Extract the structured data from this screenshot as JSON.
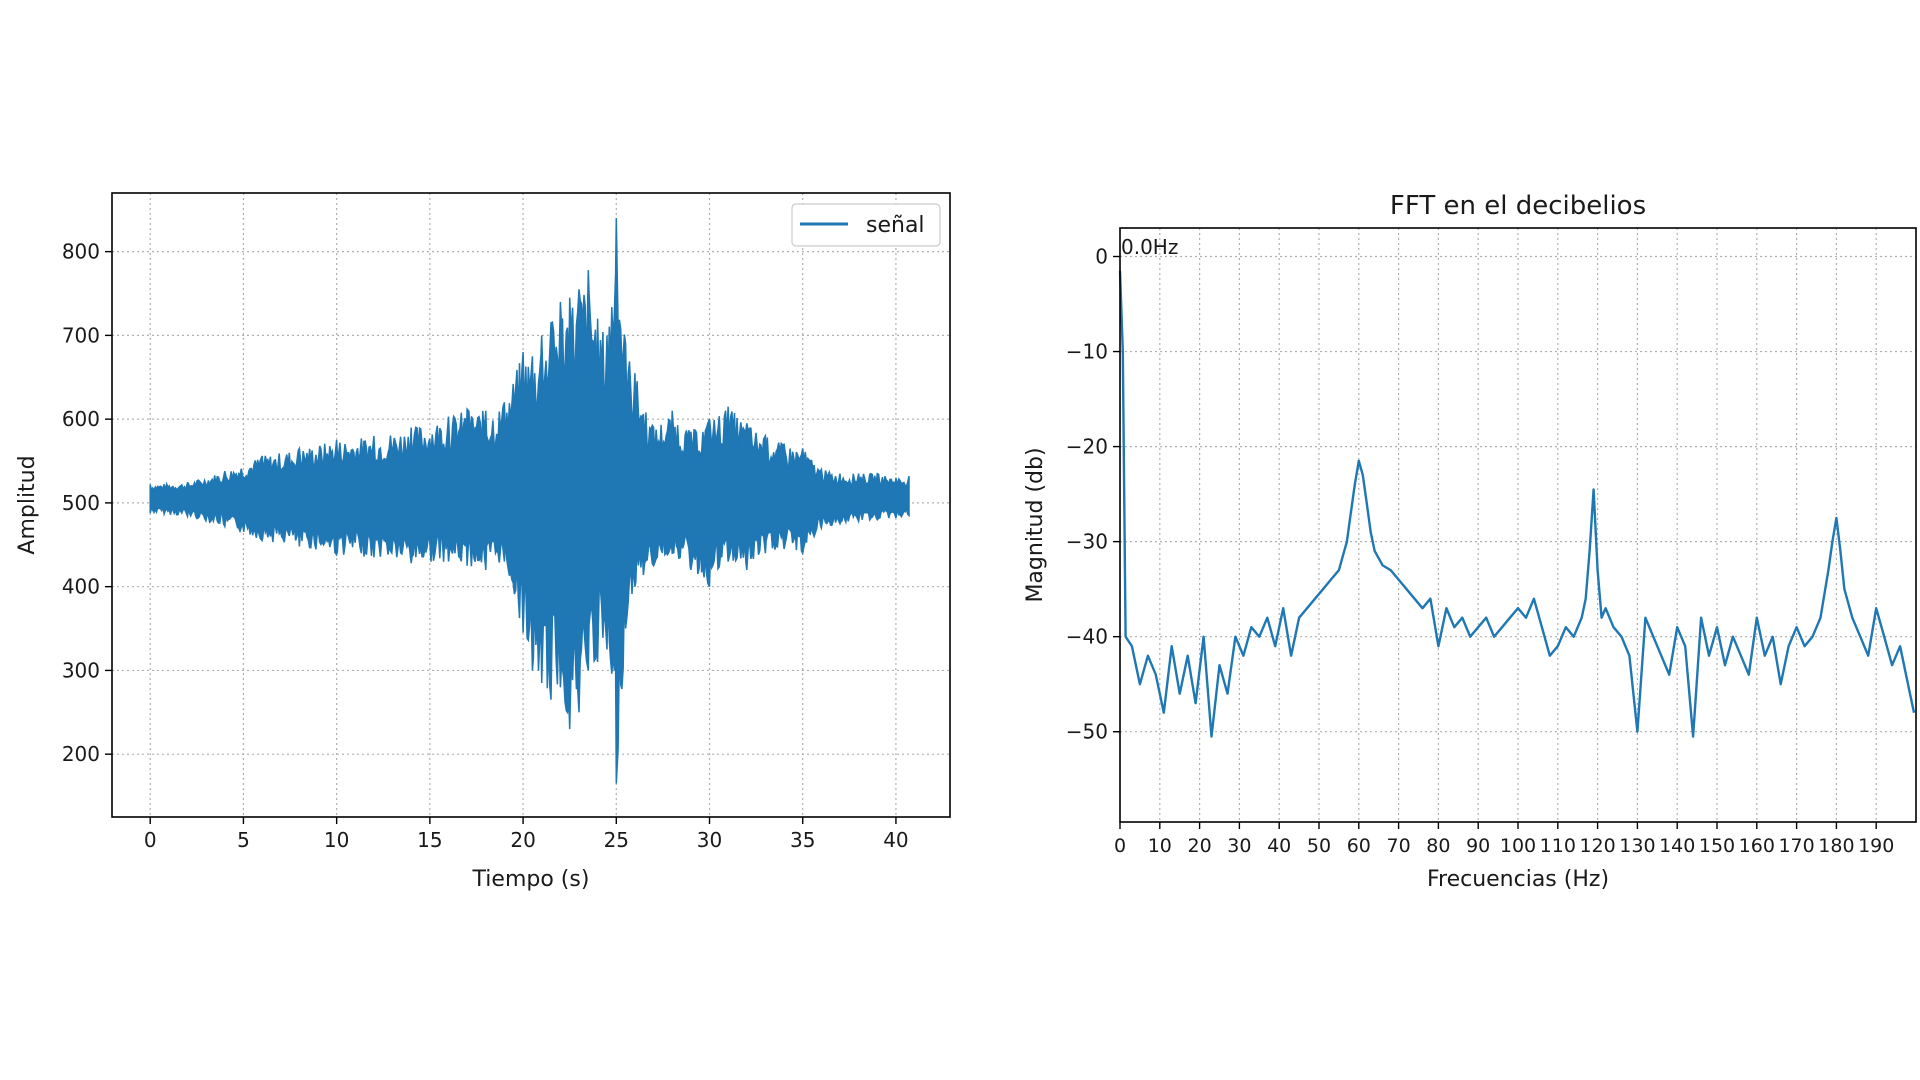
{
  "chart_data": [
    {
      "type": "line",
      "title": "",
      "xlabel": "Tiempo (s)",
      "ylabel": "Amplitud",
      "xlim": [
        -2.05,
        42.9
      ],
      "ylim": [
        125,
        870
      ],
      "xticks": [
        0,
        5,
        10,
        15,
        20,
        25,
        30,
        35,
        40
      ],
      "yticks": [
        200,
        300,
        400,
        500,
        600,
        700,
        800
      ],
      "grid": true,
      "legend": {
        "position": "upper-right",
        "entries": [
          "señal"
        ]
      },
      "color": "#1f77b4",
      "series": [
        {
          "name": "señal",
          "x": [
            0,
            2,
            4,
            6,
            8,
            10,
            12,
            14,
            16,
            17,
            18,
            19,
            20,
            20.5,
            21,
            21.5,
            22,
            22.5,
            23,
            23.5,
            24,
            24.5,
            25,
            25.5,
            26,
            27,
            28,
            29,
            30,
            31,
            32,
            33,
            34,
            35,
            36,
            37,
            38,
            39,
            40,
            40.7
          ],
          "upper": [
            522,
            524,
            538,
            556,
            565,
            575,
            580,
            590,
            603,
            612,
            610,
            620,
            680,
            675,
            700,
            715,
            740,
            745,
            755,
            778,
            720,
            700,
            840,
            690,
            655,
            590,
            610,
            585,
            600,
            615,
            595,
            580,
            570,
            565,
            540,
            535,
            535,
            535,
            530,
            532
          ],
          "lower": [
            488,
            484,
            472,
            455,
            448,
            438,
            435,
            428,
            430,
            425,
            420,
            430,
            345,
            300,
            285,
            265,
            280,
            230,
            250,
            300,
            310,
            325,
            165,
            350,
            400,
            425,
            440,
            420,
            400,
            430,
            420,
            440,
            445,
            440,
            470,
            475,
            478,
            480,
            482,
            485
          ]
        }
      ]
    },
    {
      "type": "line",
      "title": "FFT en el decibelios",
      "xlabel": "Frecuencias (Hz)",
      "ylabel": "Magnitud (db)",
      "xlim": [
        0,
        200
      ],
      "ylim": [
        -59.5,
        3
      ],
      "xticks": [
        0,
        10,
        20,
        30,
        40,
        50,
        60,
        70,
        80,
        90,
        100,
        110,
        120,
        130,
        140,
        150,
        160,
        170,
        180,
        190
      ],
      "yticks": [
        0,
        -10,
        -20,
        -30,
        -40,
        -50
      ],
      "grid": true,
      "annotation": "0.0Hz",
      "color": "#1f77b4",
      "series": [
        {
          "x": [
            0,
            0.7,
            1.4,
            3,
            5,
            7,
            9,
            11,
            13,
            15,
            17,
            19,
            21,
            23,
            25,
            27,
            29,
            31,
            33,
            35,
            37,
            39,
            41,
            43,
            45,
            47,
            49,
            51,
            53,
            55,
            57,
            58,
            59,
            60,
            61,
            62,
            63,
            64,
            66,
            68,
            70,
            72,
            74,
            76,
            78,
            80,
            82,
            84,
            86,
            88,
            90,
            92,
            94,
            96,
            98,
            100,
            102,
            104,
            106,
            108,
            110,
            112,
            114,
            116,
            117,
            118,
            119,
            120,
            121,
            122,
            124,
            126,
            128,
            130,
            132,
            134,
            136,
            138,
            140,
            142,
            144,
            146,
            148,
            150,
            152,
            154,
            156,
            158,
            160,
            162,
            164,
            166,
            168,
            170,
            172,
            174,
            176,
            178,
            179,
            180,
            181,
            182,
            184,
            186,
            188,
            190,
            192,
            194,
            196,
            198,
            199.5
          ],
          "y": [
            -1.5,
            -10,
            -40,
            -41,
            -45,
            -42,
            -44,
            -48,
            -41,
            -46,
            -42,
            -47,
            -40,
            -50.5,
            -43,
            -46,
            -40,
            -42,
            -39,
            -40,
            -38,
            -41,
            -37,
            -42,
            -38,
            -37,
            -36,
            -35,
            -34,
            -33,
            -30,
            -27,
            -24,
            -21.5,
            -23,
            -26,
            -29,
            -31,
            -32.5,
            -33,
            -34,
            -35,
            -36,
            -37,
            -36,
            -41,
            -37,
            -39,
            -38,
            -40,
            -39,
            -38,
            -40,
            -39,
            -38,
            -37,
            -38,
            -36,
            -39,
            -42,
            -41,
            -39,
            -40,
            -38,
            -36,
            -31,
            -24.5,
            -33,
            -38,
            -37,
            -39,
            -40,
            -42,
            -50,
            -38,
            -40,
            -42,
            -44,
            -39,
            -41,
            -50.5,
            -38,
            -42,
            -39,
            -43,
            -40,
            -42,
            -44,
            -38,
            -42,
            -40,
            -45,
            -41,
            -39,
            -41,
            -40,
            -38,
            -33,
            -30,
            -27.5,
            -31,
            -35,
            -38,
            -40,
            -42,
            -37,
            -40,
            -43,
            -41,
            -45,
            -48
          ]
        }
      ]
    }
  ]
}
